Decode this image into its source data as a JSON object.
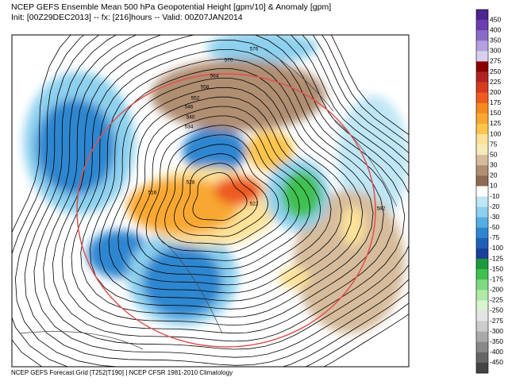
{
  "header": {
    "title": "NCEP GEFS Ensemble Mean 500 hPa Geopotential Height [gpm/10] & Anomaly [gpm]",
    "subtitle": "Init: [00Z29DEC2013] -- fx: [216]hours -- Valid: 00Z07JAN2014"
  },
  "footer": "NCEP GEFS Forecast Grid [T252|T190] | NCEP CFSR 1981-2010 Climatology",
  "colorbar": {
    "labels": [
      450,
      400,
      350,
      300,
      275,
      250,
      225,
      200,
      175,
      150,
      125,
      100,
      75,
      50,
      30,
      20,
      10,
      -10,
      -20,
      -30,
      -50,
      -75,
      -100,
      -125,
      -150,
      -175,
      -200,
      -225,
      -250,
      -275,
      -300,
      -350,
      -400,
      -450
    ],
    "colors": [
      "#4b2590",
      "#6a3fb0",
      "#8a6bc7",
      "#b3a0dc",
      "#d8cfee",
      "#8b0000",
      "#b22222",
      "#d83a1e",
      "#ee5a20",
      "#f58a20",
      "#f8a830",
      "#fbc54e",
      "#fde29a",
      "#f6eab8",
      "#d6bc9c",
      "#b08e72",
      "#8e6a52",
      "#ffffff",
      "#bfe6f5",
      "#8dd0ef",
      "#55aee0",
      "#2f86d0",
      "#2060b8",
      "#1a3f9a",
      "#1a9a3a",
      "#40c050",
      "#80d880",
      "#b0e8a8",
      "#d8f4d0",
      "#e4e4e4",
      "#cccccc",
      "#aaaaaa",
      "#888888",
      "#666666",
      "#444444"
    ]
  },
  "contour_labels": [
    576,
    570,
    564,
    558,
    552,
    546,
    540,
    534,
    528,
    522,
    516,
    582
  ]
}
